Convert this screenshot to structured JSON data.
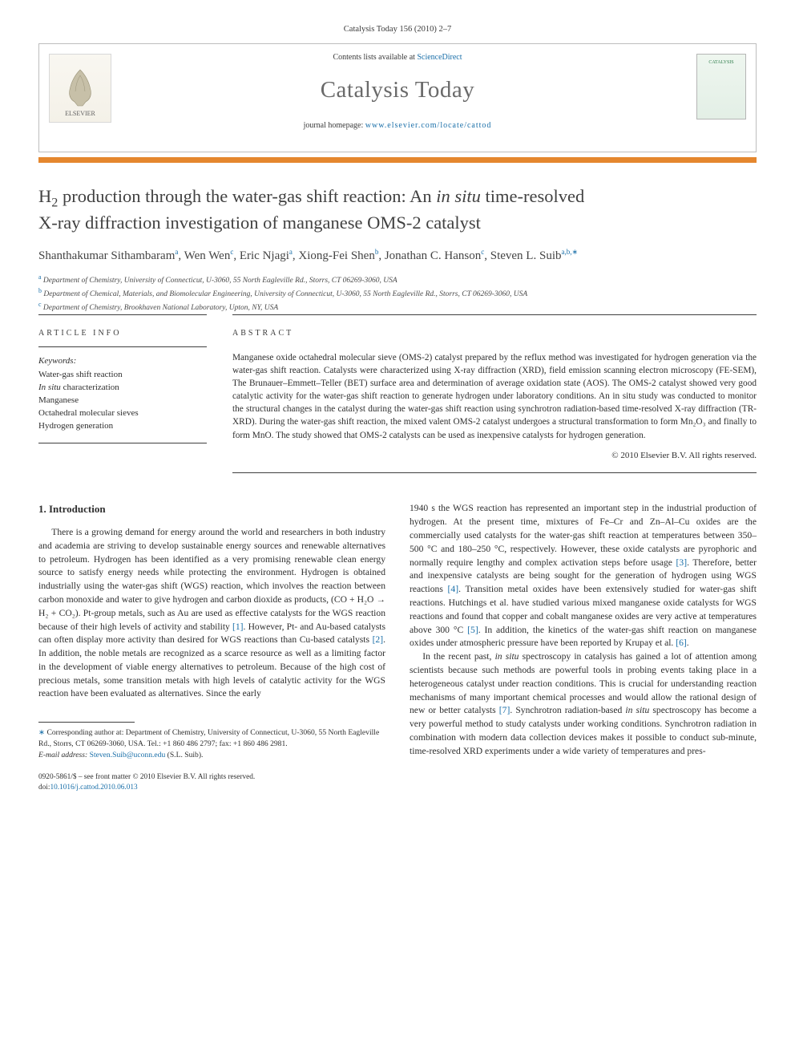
{
  "journal_ref": "Catalysis Today 156 (2010) 2–7",
  "header": {
    "contents_text_prefix": "Contents lists available at ",
    "contents_link": "ScienceDirect",
    "journal_title": "Catalysis Today",
    "homepage_prefix": "journal homepage: ",
    "homepage_url": "www.elsevier.com/locate/cattod",
    "publisher_logo_text": "ELSEVIER",
    "cover_label": "CATALYSIS"
  },
  "colors": {
    "accent_bar": "#e5872e",
    "link": "#186ea8",
    "text": "#2e2e2e",
    "rule": "#3f3f3f",
    "header_border": "#bdbdbd"
  },
  "title": {
    "line1_prefix": "H",
    "line1_sub": "2",
    "line1_rest": " production through the water-gas shift reaction: An ",
    "italic": "in situ",
    "line1_tail": " time-resolved",
    "line2": "X-ray diffraction investigation of manganese OMS-2 catalyst"
  },
  "authors": [
    {
      "name": "Shanthakumar Sithambaram",
      "sup": "a"
    },
    {
      "name": "Wen Wen",
      "sup": "c"
    },
    {
      "name": "Eric Njagi",
      "sup": "a"
    },
    {
      "name": "Xiong-Fei Shen",
      "sup": "b"
    },
    {
      "name": "Jonathan C. Hanson",
      "sup": "c"
    },
    {
      "name": "Steven L. Suib",
      "sup": "a,b,",
      "star": true
    }
  ],
  "affiliations": [
    {
      "sup": "a",
      "text": "Department of Chemistry, University of Connecticut, U-3060, 55 North Eagleville Rd., Storrs, CT 06269-3060, USA"
    },
    {
      "sup": "b",
      "text": "Department of Chemical, Materials, and Biomolecular Engineering, University of Connecticut, U-3060, 55 North Eagleville Rd., Storrs, CT 06269-3060, USA"
    },
    {
      "sup": "c",
      "text": "Department of Chemistry, Brookhaven National Laboratory, Upton, NY, USA"
    }
  ],
  "article_info": {
    "heading": "ARTICLE INFO",
    "keywords_label": "Keywords:",
    "keywords": [
      "Water-gas shift reaction",
      "In situ characterization",
      "Manganese",
      "Octahedral molecular sieves",
      "Hydrogen generation"
    ]
  },
  "abstract": {
    "heading": "ABSTRACT",
    "text": "Manganese oxide octahedral molecular sieve (OMS-2) catalyst prepared by the reflux method was investigated for hydrogen generation via the water-gas shift reaction. Catalysts were characterized using X-ray diffraction (XRD), field emission scanning electron microscopy (FE-SEM), The Brunauer–Emmett–Teller (BET) surface area and determination of average oxidation state (AOS). The OMS-2 catalyst showed very good catalytic activity for the water-gas shift reaction to generate hydrogen under laboratory conditions. An in situ study was conducted to monitor the structural changes in the catalyst during the water-gas shift reaction using synchrotron radiation-based time-resolved X-ray diffraction (TR-XRD). During the water-gas shift reaction, the mixed valent OMS-2 catalyst undergoes a structural transformation to form Mn₂O₃ and finally to form MnO. The study showed that OMS-2 catalysts can be used as inexpensive catalysts for hydrogen generation.",
    "copyright": "© 2010 Elsevier B.V. All rights reserved."
  },
  "intro": {
    "heading": "1. Introduction",
    "p1": "There is a growing demand for energy around the world and researchers in both industry and academia are striving to develop sustainable energy sources and renewable alternatives to petroleum. Hydrogen has been identified as a very promising renewable clean energy source to satisfy energy needs while protecting the environment. Hydrogen is obtained industrially using the water-gas shift (WGS) reaction, which involves the reaction between carbon monoxide and water to give hydrogen and carbon dioxide as products, (CO + H₂O → H₂ + CO₂). Pt-group metals, such as Au are used as effective catalysts for the WGS reaction because of their high levels of activity and stability [1]. However, Pt- and Au-based catalysts can often display more activity than desired for WGS reactions than Cu-based catalysts [2]. In addition, the noble metals are recognized as a scarce resource as well as a limiting factor in the development of viable energy alternatives to petroleum. Because of the high cost of precious metals, some transition metals with high levels of catalytic activity for the WGS reaction have been evaluated as alternatives. Since the early ",
    "p2": "1940 s the WGS reaction has represented an important step in the industrial production of hydrogen. At the present time, mixtures of Fe–Cr and Zn–Al–Cu oxides are the commercially used catalysts for the water-gas shift reaction at temperatures between 350–500 °C and 180–250 °C, respectively. However, these oxide catalysts are pyrophoric and normally require lengthy and complex activation steps before usage [3]. Therefore, better and inexpensive catalysts are being sought for the generation of hydrogen using WGS reactions [4]. Transition metal oxides have been extensively studied for water-gas shift reactions. Hutchings et al. have studied various mixed manganese oxide catalysts for WGS reactions and found that copper and cobalt manganese oxides are very active at temperatures above 300 °C [5]. In addition, the kinetics of the water-gas shift reaction on manganese oxides under atmospheric pressure have been reported by Krupay et al. [6].",
    "p3": "In the recent past, in situ spectroscopy in catalysis has gained a lot of attention among scientists because such methods are powerful tools in probing events taking place in a heterogeneous catalyst under reaction conditions. This is crucial for understanding reaction mechanisms of many important chemical processes and would allow the rational design of new or better catalysts [7]. Synchrotron radiation-based in situ spectroscopy has become a very powerful method to study catalysts under working conditions. Synchrotron radiation in combination with modern data collection devices makes it possible to conduct sub-minute, time-resolved XRD experiments under a wide variety of temperatures and pres-"
  },
  "footnotes": {
    "corr_prefix": "Corresponding author at: Department of Chemistry, University of Connecticut, U-3060, 55 North Eagleville Rd., Storrs, CT 06269-3060, USA. Tel.: +1 860 486 2797; fax: +1 860 486 2981.",
    "email_label": "E-mail address: ",
    "email": "Steven.Suib@uconn.edu",
    "email_suffix": " (S.L. Suib)."
  },
  "footer": {
    "line1": "0920-5861/$ – see front matter © 2010 Elsevier B.V. All rights reserved.",
    "doi_label": "doi:",
    "doi": "10.1016/j.cattod.2010.06.013"
  }
}
